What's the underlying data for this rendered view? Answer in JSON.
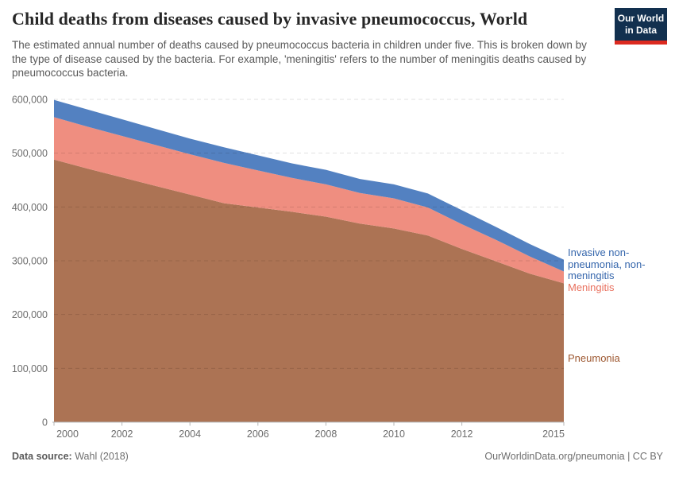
{
  "header": {
    "title": "Child deaths from diseases caused by invasive pneumococcus, World",
    "subtitle": "The estimated annual number of deaths caused by pneumococcus bacteria in children under five. This is broken down by the type of disease caused by the bacteria. For example, 'meningitis' refers to the number of meningitis deaths caused by pneumococcus bacteria.",
    "logo": {
      "line1": "Our World",
      "line2": "in Data",
      "bg_color": "#12304f",
      "bar_color": "#dc2a20"
    }
  },
  "footer": {
    "datasource_label": "Data source:",
    "datasource_value": "Wahl (2018)",
    "credit": "OurWorldinData.org/pneumonia | CC BY"
  },
  "chart_data": {
    "type": "area",
    "stacked": true,
    "title": "Child deaths from diseases caused by invasive pneumococcus, World",
    "xlabel": "",
    "ylabel": "",
    "x": [
      2000,
      2001,
      2002,
      2003,
      2004,
      2005,
      2006,
      2007,
      2008,
      2009,
      2010,
      2011,
      2012,
      2013,
      2014,
      2015
    ],
    "xticks": [
      2000,
      2002,
      2004,
      2006,
      2008,
      2010,
      2012,
      2015
    ],
    "ylim": [
      0,
      600000
    ],
    "yticks": [
      0,
      100000,
      200000,
      300000,
      400000,
      500000,
      600000
    ],
    "grid": "horizontal-dashed",
    "legend_position": "right-edge-labels",
    "series": [
      {
        "name": "Pneumonia",
        "color": "#ac7354",
        "label_color": "#9d5730",
        "values": [
          488000,
          471000,
          455000,
          439000,
          423000,
          407000,
          399000,
          391000,
          382000,
          369000,
          360000,
          347000,
          322000,
          299000,
          276000,
          258000
        ]
      },
      {
        "name": "Meningitis",
        "color": "#ef8e80",
        "label_color": "#e9705e",
        "values": [
          79000,
          78000,
          77000,
          76000,
          75000,
          75000,
          69000,
          63000,
          60000,
          57000,
          56000,
          52000,
          46000,
          40000,
          32000,
          22000
        ]
      },
      {
        "name": "Invasive non-pneumonia, non-meningitis",
        "color": "#5381c1",
        "label_color": "#3566ac",
        "values": [
          32000,
          32000,
          31000,
          30000,
          29000,
          29000,
          28000,
          27000,
          27000,
          26000,
          26000,
          26000,
          26000,
          24000,
          23000,
          22000
        ]
      }
    ]
  }
}
